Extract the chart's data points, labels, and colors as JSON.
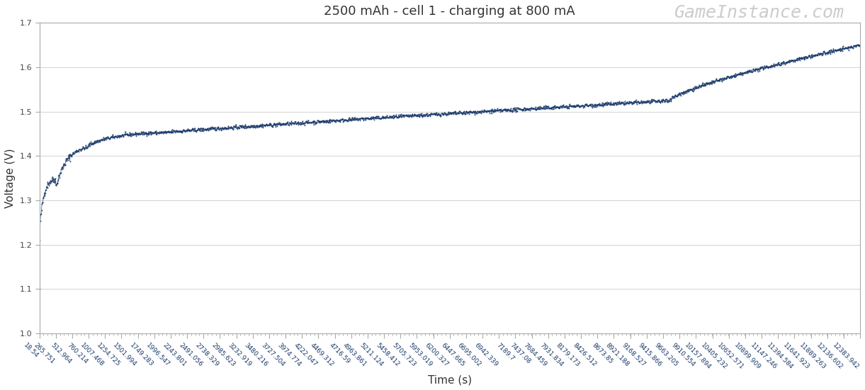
{
  "title": "2500 mAh - cell 1 - charging at 800 mA",
  "xlabel": "Time (s)",
  "ylabel": "Voltage (V)",
  "watermark": "GameInstance.com",
  "ylim": [
    1.0,
    1.7
  ],
  "yticks": [
    1.0,
    1.1,
    1.2,
    1.3,
    1.4,
    1.5,
    1.6,
    1.7
  ],
  "line_color": "#1a3a6b",
  "marker_color": "#1a3a6b",
  "bg_color": "#ffffff",
  "xtick_labels": [
    "18.54",
    "265.751",
    "512.964",
    "760.214",
    "1007.468",
    "1254.725",
    "1501.994",
    "1749.283",
    "1996.547",
    "2243.801",
    "2491.056",
    "2738.329",
    "2985.623",
    "3232.919",
    "3480.216",
    "3727.504",
    "3974.774",
    "4222.047",
    "4469.312",
    "4716.59",
    "4963.861",
    "5211.124",
    "5458.412",
    "5705.723",
    "5953.019",
    "6200.327",
    "6447.665",
    "6695.002",
    "6942.339",
    "7189.7",
    "7437.08",
    "7684.459",
    "7931.834",
    "8179.173",
    "8426.512",
    "8673.85",
    "8921.188",
    "9168.527",
    "9415.866",
    "9663.205",
    "9910.554",
    "10157.894",
    "10405.232",
    "10652.571",
    "10899.909",
    "11147.246",
    "11394.584",
    "11641.923",
    "11889.263",
    "12136.602",
    "12383.942"
  ],
  "title_fontsize": 13,
  "label_fontsize": 11,
  "tick_fontsize": 6.5,
  "watermark_fontsize": 18,
  "figsize": [
    12.21,
    5.51
  ],
  "dpi": 100
}
